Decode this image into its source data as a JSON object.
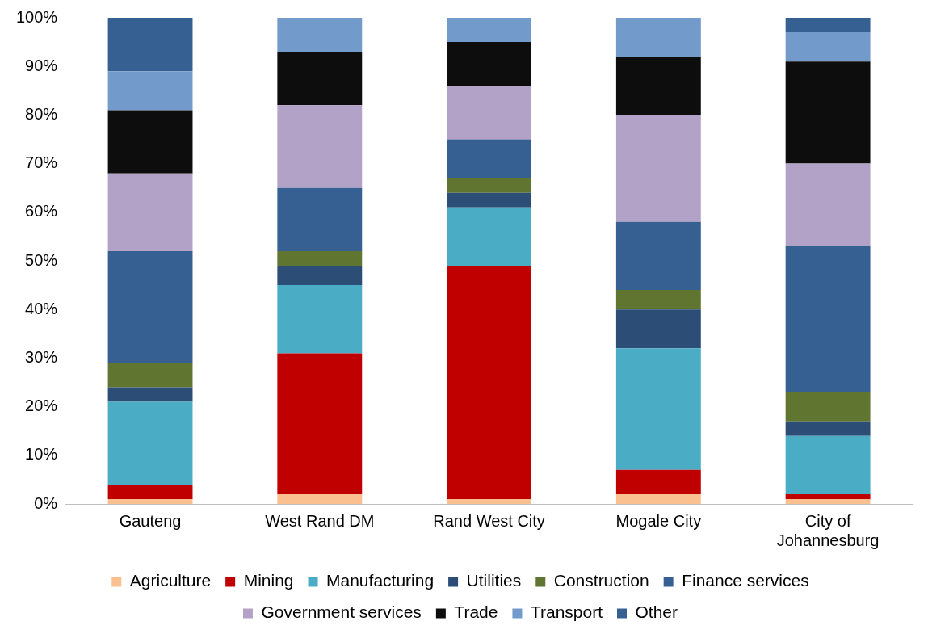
{
  "chart_data": {
    "type": "bar",
    "stacked": true,
    "categories": [
      "Gauteng",
      "West Rand DM",
      "Rand West City",
      "Mogale City",
      "City of Johannesburg"
    ],
    "ylim": [
      0,
      100
    ],
    "yticks": [
      {
        "value": 0,
        "label": "0%"
      },
      {
        "value": 10,
        "label": "10%"
      },
      {
        "value": 20,
        "label": "20%"
      },
      {
        "value": 30,
        "label": "30%"
      },
      {
        "value": 40,
        "label": "40%"
      },
      {
        "value": 50,
        "label": "50%"
      },
      {
        "value": 60,
        "label": "60%"
      },
      {
        "value": 70,
        "label": "70%"
      },
      {
        "value": 80,
        "label": "80%"
      },
      {
        "value": 90,
        "label": "90%"
      },
      {
        "value": 100,
        "label": "100%"
      }
    ],
    "grid": false,
    "legend": "bottom",
    "series": [
      {
        "name": "Agriculture",
        "color": "#fac090",
        "values": [
          1,
          2,
          1,
          2,
          1
        ]
      },
      {
        "name": "Mining",
        "color": "#c00000",
        "values": [
          3,
          29,
          48,
          5,
          1
        ]
      },
      {
        "name": "Manufacturing",
        "color": "#4bacc6",
        "values": [
          17,
          14,
          12,
          25,
          12
        ]
      },
      {
        "name": "Utilities",
        "color": "#2c4d75",
        "values": [
          3,
          4,
          3,
          8,
          3
        ]
      },
      {
        "name": "Construction",
        "color": "#5f7530",
        "values": [
          5,
          3,
          3,
          4,
          6
        ]
      },
      {
        "name": "Finance services",
        "color": "#376092",
        "values": [
          23,
          13,
          8,
          14,
          30
        ]
      },
      {
        "name": "Government services",
        "color": "#b2a2c7",
        "values": [
          16,
          17,
          11,
          22,
          17
        ]
      },
      {
        "name": "Trade",
        "color": "#0d0d0d",
        "values": [
          13,
          11,
          9,
          12,
          21
        ]
      },
      {
        "name": "Transport",
        "color": "#729aca",
        "values": [
          8,
          7,
          5,
          8,
          6
        ]
      },
      {
        "name": "Other",
        "color": "#376092",
        "values": [
          11,
          0,
          0,
          0,
          3
        ]
      }
    ]
  }
}
